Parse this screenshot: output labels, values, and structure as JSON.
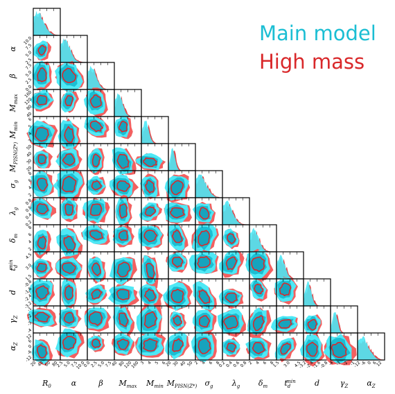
{
  "legend": {
    "main": {
      "label": "Main model",
      "color": "#1bbed3"
    },
    "high": {
      "label": "High mass",
      "color": "#d9282a"
    }
  },
  "chart_data": {
    "type": "corner",
    "parameters": [
      {
        "id": "R0",
        "ticks": [
          "20",
          "40",
          "60",
          "80"
        ]
      },
      {
        "id": "alpha",
        "ticks": [
          "2.5",
          "5.0",
          "7.5",
          "10.0"
        ]
      },
      {
        "id": "beta",
        "ticks": [
          "0.0",
          "2.5",
          "5.0",
          "7.5"
        ]
      },
      {
        "id": "Mmax",
        "ticks": [
          "40",
          "80",
          "120",
          "160"
        ]
      },
      {
        "id": "Mmin",
        "ticks": [
          "3",
          "4",
          "5",
          "6"
        ]
      },
      {
        "id": "MPISN",
        "ticks": [
          "20",
          "30",
          "40",
          "50"
        ]
      },
      {
        "id": "sigma_g",
        "ticks": [
          "2",
          "4",
          "6",
          "8"
        ]
      },
      {
        "id": "lambda_g",
        "ticks": [
          "0.2",
          "0.4",
          "0.6",
          "0.8"
        ]
      },
      {
        "id": "delta_m",
        "ticks": [
          "2",
          "4",
          "6",
          "8"
        ]
      },
      {
        "id": "tdmin",
        "ticks": [
          "1.5",
          "3.0",
          "4.5"
        ]
      },
      {
        "id": "d",
        "ticks": [
          "-3.2",
          "-2.4",
          "-1.6",
          "-0.8"
        ]
      },
      {
        "id": "gammaZ",
        "ticks": [
          "-4",
          "-3",
          "-2",
          "-1"
        ]
      },
      {
        "id": "alphaZ",
        "ticks": [
          "-12",
          "-6",
          "0",
          "6",
          "12"
        ]
      }
    ],
    "series": [
      {
        "name": "Main model",
        "color": "#1bbed3"
      },
      {
        "name": "High mass",
        "color": "#d9282a"
      }
    ]
  }
}
